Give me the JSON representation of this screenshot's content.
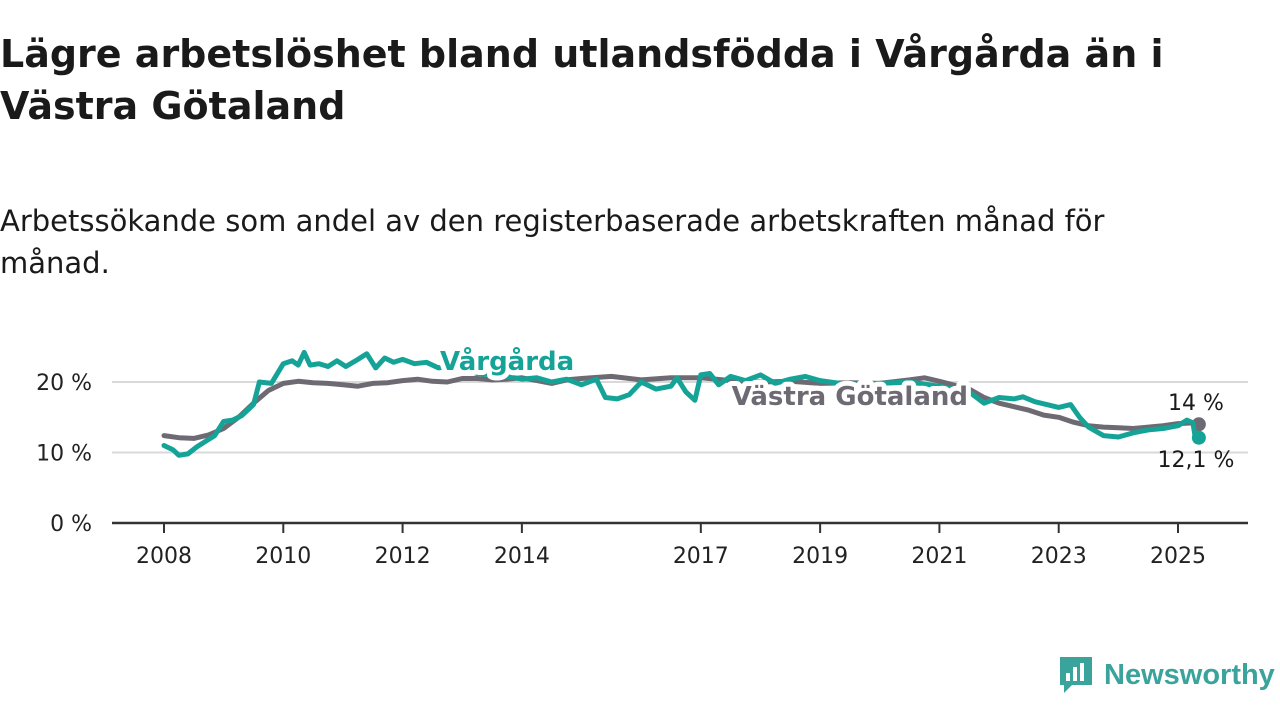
{
  "title": "Lägre arbetslöshet bland utlandsfödda i Vårgårda än i Västra Götaland",
  "subtitle": "Arbetssökande som andel av den registerbaserade arbetskraften månad för månad.",
  "brand": {
    "name": "Newsworthy",
    "icon": "newsworthy-logo-icon",
    "color": "#3aa39b"
  },
  "chart_data": {
    "type": "line",
    "x_range": [
      2007.2,
      2026.2
    ],
    "ylim": [
      0,
      22
    ],
    "y_ticks": [
      0,
      10,
      20
    ],
    "y_tick_labels": [
      "0 %",
      "10 %",
      "20 %"
    ],
    "x_ticks": [
      2008,
      2010,
      2012,
      2014,
      2017,
      2019,
      2021,
      2023,
      2025
    ],
    "x_tick_labels": [
      "2008",
      "2010",
      "2012",
      "2014",
      "2017",
      "2019",
      "2021",
      "2023",
      "2025"
    ],
    "grid": "horizontal",
    "series": [
      {
        "name": "Västra Götaland",
        "color": "#6e6a73",
        "end_label": "14 %",
        "points": [
          [
            2008.0,
            12.4
          ],
          [
            2008.25,
            12.1
          ],
          [
            2008.5,
            12.0
          ],
          [
            2008.75,
            12.5
          ],
          [
            2009.0,
            13.4
          ],
          [
            2009.25,
            15.0
          ],
          [
            2009.5,
            17.0
          ],
          [
            2009.75,
            18.8
          ],
          [
            2010.0,
            19.8
          ],
          [
            2010.25,
            20.1
          ],
          [
            2010.5,
            19.9
          ],
          [
            2010.75,
            19.8
          ],
          [
            2011.0,
            19.6
          ],
          [
            2011.25,
            19.4
          ],
          [
            2011.5,
            19.8
          ],
          [
            2011.75,
            19.9
          ],
          [
            2012.0,
            20.2
          ],
          [
            2012.25,
            20.4
          ],
          [
            2012.5,
            20.1
          ],
          [
            2012.75,
            20.0
          ],
          [
            2013.0,
            20.5
          ],
          [
            2013.25,
            20.5
          ],
          [
            2013.5,
            20.3
          ],
          [
            2013.75,
            20.4
          ],
          [
            2014.0,
            20.6
          ],
          [
            2014.25,
            20.2
          ],
          [
            2014.5,
            19.8
          ],
          [
            2014.75,
            20.3
          ],
          [
            2015.0,
            20.5
          ],
          [
            2015.5,
            20.8
          ],
          [
            2016.0,
            20.3
          ],
          [
            2016.5,
            20.6
          ],
          [
            2017.0,
            20.6
          ],
          [
            2017.5,
            20.2
          ],
          [
            2018.0,
            20.0
          ],
          [
            2018.5,
            20.1
          ],
          [
            2019.0,
            19.8
          ],
          [
            2019.5,
            19.9
          ],
          [
            2020.0,
            19.8
          ],
          [
            2020.5,
            20.3
          ],
          [
            2020.75,
            20.6
          ],
          [
            2021.0,
            20.1
          ],
          [
            2021.5,
            19.0
          ],
          [
            2021.75,
            17.8
          ],
          [
            2022.0,
            17.0
          ],
          [
            2022.25,
            16.5
          ],
          [
            2022.5,
            16.0
          ],
          [
            2022.75,
            15.3
          ],
          [
            2023.0,
            15.0
          ],
          [
            2023.25,
            14.3
          ],
          [
            2023.5,
            13.8
          ],
          [
            2023.75,
            13.6
          ],
          [
            2024.0,
            13.5
          ],
          [
            2024.25,
            13.4
          ],
          [
            2024.5,
            13.6
          ],
          [
            2024.75,
            13.8
          ],
          [
            2025.0,
            14.1
          ],
          [
            2025.25,
            14.2
          ],
          [
            2025.35,
            14.0
          ]
        ]
      },
      {
        "name": "Vårgårda",
        "color": "#15a397",
        "end_label": "12,1 %",
        "points": [
          [
            2008.0,
            11.0
          ],
          [
            2008.15,
            10.4
          ],
          [
            2008.25,
            9.6
          ],
          [
            2008.4,
            9.8
          ],
          [
            2008.55,
            10.8
          ],
          [
            2008.7,
            11.6
          ],
          [
            2008.85,
            12.4
          ],
          [
            2009.0,
            14.4
          ],
          [
            2009.15,
            14.6
          ],
          [
            2009.3,
            15.2
          ],
          [
            2009.5,
            16.8
          ],
          [
            2009.6,
            20.0
          ],
          [
            2009.8,
            19.8
          ],
          [
            2010.0,
            22.6
          ],
          [
            2010.15,
            23.0
          ],
          [
            2010.25,
            22.4
          ],
          [
            2010.35,
            24.2
          ],
          [
            2010.45,
            22.4
          ],
          [
            2010.6,
            22.6
          ],
          [
            2010.75,
            22.2
          ],
          [
            2010.9,
            23.0
          ],
          [
            2011.05,
            22.2
          ],
          [
            2011.25,
            23.2
          ],
          [
            2011.4,
            24.0
          ],
          [
            2011.55,
            22.0
          ],
          [
            2011.7,
            23.4
          ],
          [
            2011.85,
            22.8
          ],
          [
            2012.0,
            23.2
          ],
          [
            2012.2,
            22.6
          ],
          [
            2012.4,
            22.8
          ],
          [
            2012.6,
            22.0
          ],
          [
            2012.75,
            22.2
          ],
          [
            2013.0,
            21.8
          ],
          [
            2013.25,
            21.2
          ],
          [
            2013.5,
            21.0
          ],
          [
            2013.75,
            20.8
          ],
          [
            2014.0,
            20.4
          ],
          [
            2014.25,
            20.6
          ],
          [
            2014.5,
            20.0
          ],
          [
            2014.75,
            20.4
          ],
          [
            2015.0,
            19.6
          ],
          [
            2015.25,
            20.4
          ],
          [
            2015.4,
            17.8
          ],
          [
            2015.6,
            17.6
          ],
          [
            2015.8,
            18.2
          ],
          [
            2016.0,
            20.0
          ],
          [
            2016.25,
            19.0
          ],
          [
            2016.5,
            19.4
          ],
          [
            2016.6,
            20.6
          ],
          [
            2016.75,
            18.6
          ],
          [
            2016.9,
            17.4
          ],
          [
            2017.0,
            21.0
          ],
          [
            2017.15,
            21.2
          ],
          [
            2017.3,
            19.6
          ],
          [
            2017.5,
            20.8
          ],
          [
            2017.75,
            20.2
          ],
          [
            2018.0,
            21.0
          ],
          [
            2018.25,
            19.8
          ],
          [
            2018.5,
            20.4
          ],
          [
            2018.75,
            20.8
          ],
          [
            2019.0,
            20.2
          ],
          [
            2019.5,
            19.6
          ],
          [
            2020.0,
            19.8
          ],
          [
            2020.5,
            20.0
          ],
          [
            2021.0,
            19.4
          ],
          [
            2021.5,
            18.6
          ],
          [
            2021.75,
            17.0
          ],
          [
            2022.0,
            17.8
          ],
          [
            2022.25,
            17.6
          ],
          [
            2022.4,
            17.9
          ],
          [
            2022.6,
            17.2
          ],
          [
            2022.8,
            16.8
          ],
          [
            2023.0,
            16.4
          ],
          [
            2023.2,
            16.8
          ],
          [
            2023.35,
            15.0
          ],
          [
            2023.5,
            13.6
          ],
          [
            2023.75,
            12.4
          ],
          [
            2024.0,
            12.2
          ],
          [
            2024.25,
            12.8
          ],
          [
            2024.5,
            13.2
          ],
          [
            2024.75,
            13.4
          ],
          [
            2025.0,
            13.8
          ],
          [
            2025.15,
            14.6
          ],
          [
            2025.25,
            14.2
          ],
          [
            2025.3,
            11.6
          ],
          [
            2025.35,
            12.1
          ]
        ]
      }
    ]
  }
}
